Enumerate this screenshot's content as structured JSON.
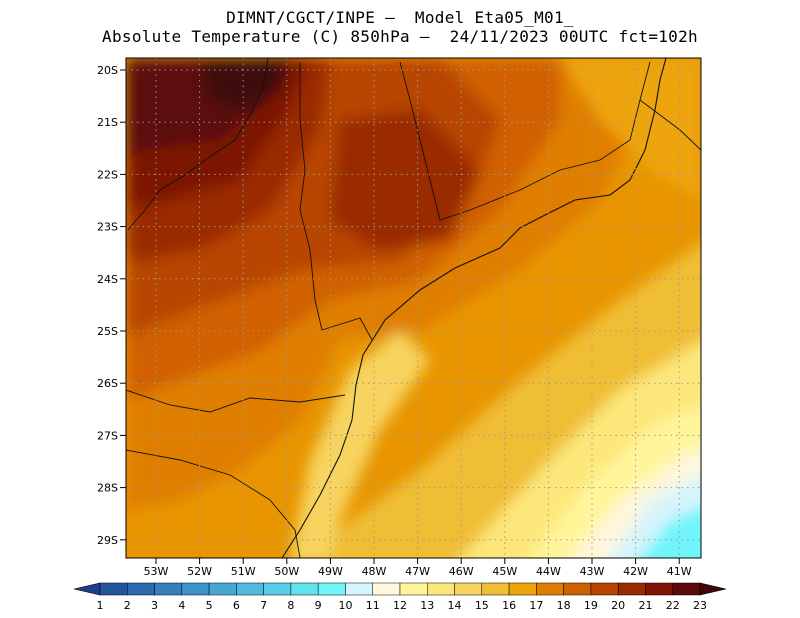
{
  "title": {
    "line1": "DIMNT/CGCT/INPE –  Model Eta05_M01_",
    "line2": "Absolute Temperature (C) 850hPa –  24/11/2023 00UTC fct=102h"
  },
  "map": {
    "lat_labels": [
      "20S",
      "21S",
      "22S",
      "23S",
      "24S",
      "25S",
      "26S",
      "27S",
      "28S",
      "29S"
    ],
    "lon_labels": [
      "53W",
      "52W",
      "51W",
      "50W",
      "49W",
      "48W",
      "47W",
      "46W",
      "45W",
      "44W",
      "43W",
      "42W",
      "41W"
    ]
  },
  "colorbar": {
    "labels": [
      "1",
      "2",
      "3",
      "4",
      "5",
      "6",
      "7",
      "8",
      "9",
      "10",
      "11",
      "12",
      "13",
      "14",
      "15",
      "16",
      "17",
      "18",
      "19",
      "20",
      "21",
      "22",
      "23"
    ],
    "colors": [
      "#1f3c8f",
      "#23559e",
      "#2a6aae",
      "#3380bd",
      "#3b93c8",
      "#45a7d3",
      "#4fbadd",
      "#56cde6",
      "#5ee3ef",
      "#70f5fb",
      "#d6f4fb",
      "#fff7dc",
      "#fff59a",
      "#fde77a",
      "#f7d45e",
      "#f0be36",
      "#eea409",
      "#e07e02",
      "#d06000",
      "#b84400",
      "#9a2a00",
      "#7d1505",
      "#5c0b0b",
      "#3e0808"
    ]
  }
}
